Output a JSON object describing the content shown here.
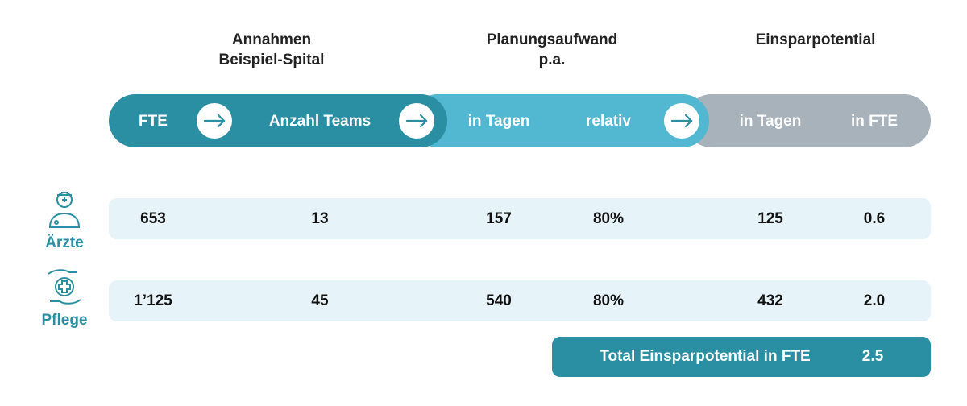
{
  "headers": [
    [
      "Annahmen",
      "Beispiel-Spital"
    ],
    [
      "Planungsaufwand",
      "p.a."
    ],
    [
      "Einsparpotential"
    ]
  ],
  "columns": [
    "FTE",
    "Anzahl Teams",
    "in Tagen",
    "relativ",
    "in Tagen",
    "in FTE"
  ],
  "rows": [
    {
      "label": "Ärzte",
      "cells": [
        "653",
        "13",
        "157",
        "80%",
        "125",
        "0.6"
      ]
    },
    {
      "label": "Pflege",
      "cells": [
        "1’125",
        "45",
        "540",
        "80%",
        "432",
        "2.0"
      ]
    }
  ],
  "total": {
    "label": "Total Einsparpotential in FTE",
    "value": "2.5"
  }
}
